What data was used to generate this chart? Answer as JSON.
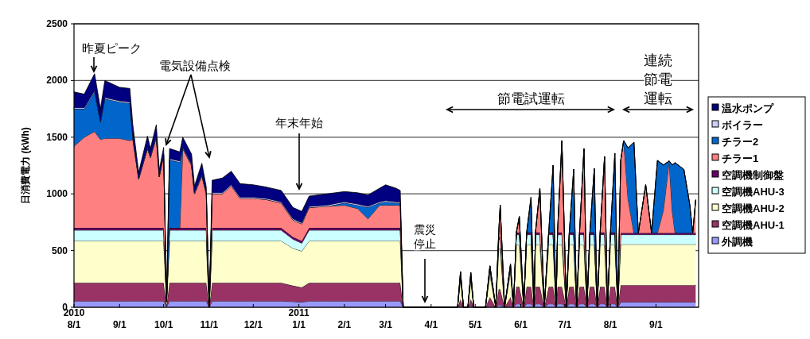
{
  "chart_data": {
    "type": "area",
    "stacked": true,
    "ylabel": "日消費電力 (kWh)",
    "x": [
      "2010-08-01",
      "2010-08-08",
      "2010-08-15",
      "2010-08-19",
      "2010-08-22",
      "2010-09-01",
      "2010-09-08",
      "2010-09-10",
      "2010-09-14",
      "2010-09-20",
      "2010-09-22",
      "2010-09-26",
      "2010-09-28",
      "2010-10-01",
      "2010-10-03",
      "2010-10-05",
      "2010-10-12",
      "2010-10-14",
      "2010-10-20",
      "2010-10-22",
      "2010-10-27",
      "2010-10-30",
      "2010-11-01",
      "2010-11-03",
      "2010-11-10",
      "2010-11-16",
      "2010-11-22",
      "2010-12-01",
      "2010-12-10",
      "2010-12-20",
      "2010-12-28",
      "2011-01-03",
      "2011-01-08",
      "2011-01-20",
      "2011-02-01",
      "2011-02-10",
      "2011-02-17",
      "2011-02-25",
      "2011-03-01",
      "2011-03-08",
      "2011-03-11",
      "2011-03-13",
      "2011-04-19",
      "2011-04-21",
      "2011-04-23",
      "2011-04-26",
      "2011-04-28",
      "2011-04-30",
      "2011-05-08",
      "2011-05-11",
      "2011-05-15",
      "2011-05-17",
      "2011-05-18",
      "2011-05-21",
      "2011-05-25",
      "2011-05-27",
      "2011-05-29",
      "2011-05-31",
      "2011-06-03",
      "2011-06-05",
      "2011-06-08",
      "2011-06-10",
      "2011-06-11",
      "2011-06-14",
      "2011-06-17",
      "2011-06-20",
      "2011-06-23",
      "2011-06-25",
      "2011-06-26",
      "2011-06-29",
      "2011-07-02",
      "2011-07-04",
      "2011-07-07",
      "2011-07-09",
      "2011-07-11",
      "2011-07-14",
      "2011-07-16",
      "2011-07-18",
      "2011-07-21",
      "2011-07-23",
      "2011-07-25",
      "2011-07-28",
      "2011-07-30",
      "2011-08-01",
      "2011-08-04",
      "2011-08-06",
      "2011-08-08",
      "2011-08-10",
      "2011-08-13",
      "2011-08-17",
      "2011-08-20",
      "2011-08-25",
      "2011-08-29",
      "2011-09-02",
      "2011-09-06",
      "2011-09-10",
      "2011-09-12",
      "2011-09-14",
      "2011-09-20",
      "2011-09-24",
      "2011-09-26",
      "2011-09-28"
    ],
    "series": [
      {
        "name": "外調機",
        "color": "#9999ff",
        "values": [
          55,
          55,
          55,
          55,
          55,
          55,
          55,
          55,
          55,
          55,
          55,
          55,
          55,
          55,
          5,
          55,
          55,
          55,
          55,
          55,
          55,
          55,
          0,
          55,
          55,
          55,
          55,
          55,
          55,
          55,
          50,
          45,
          55,
          55,
          55,
          55,
          55,
          55,
          55,
          55,
          55,
          0,
          0,
          10,
          0,
          0,
          10,
          0,
          0,
          10,
          0,
          20,
          20,
          0,
          10,
          0,
          30,
          30,
          0,
          30,
          30,
          0,
          30,
          30,
          0,
          30,
          30,
          0,
          30,
          30,
          0,
          30,
          30,
          0,
          30,
          30,
          0,
          30,
          30,
          0,
          30,
          30,
          0,
          30,
          30,
          0,
          45,
          45,
          45,
          45,
          45,
          45,
          45,
          45,
          45,
          45,
          45,
          45,
          45,
          45,
          45,
          45
        ]
      },
      {
        "name": "空調機AHU-1",
        "color": "#993366",
        "values": [
          160,
          160,
          160,
          160,
          160,
          160,
          160,
          160,
          160,
          160,
          160,
          160,
          160,
          160,
          10,
          160,
          160,
          160,
          160,
          160,
          160,
          160,
          0,
          160,
          160,
          160,
          160,
          160,
          160,
          160,
          140,
          130,
          160,
          160,
          160,
          160,
          160,
          160,
          160,
          160,
          160,
          0,
          0,
          60,
          0,
          0,
          60,
          0,
          0,
          80,
          0,
          140,
          140,
          0,
          80,
          0,
          150,
          150,
          0,
          150,
          150,
          0,
          150,
          150,
          0,
          150,
          150,
          0,
          150,
          150,
          0,
          150,
          150,
          0,
          150,
          150,
          0,
          150,
          150,
          0,
          150,
          150,
          0,
          150,
          150,
          0,
          150,
          150,
          150,
          150,
          150,
          150,
          150,
          150,
          150,
          150,
          150,
          150,
          150,
          150,
          150,
          150
        ]
      },
      {
        "name": "空調機AHU-2",
        "color": "#ffffcc",
        "values": [
          370,
          370,
          370,
          370,
          370,
          370,
          370,
          370,
          370,
          370,
          370,
          370,
          370,
          370,
          30,
          370,
          370,
          370,
          370,
          370,
          370,
          370,
          0,
          370,
          370,
          370,
          370,
          370,
          370,
          370,
          330,
          320,
          370,
          370,
          370,
          370,
          370,
          370,
          370,
          370,
          370,
          0,
          0,
          180,
          0,
          0,
          170,
          0,
          0,
          200,
          0,
          360,
          360,
          0,
          220,
          0,
          370,
          370,
          0,
          370,
          370,
          0,
          370,
          370,
          0,
          370,
          370,
          0,
          370,
          370,
          0,
          370,
          370,
          0,
          370,
          370,
          0,
          370,
          370,
          0,
          370,
          370,
          0,
          370,
          370,
          0,
          360,
          360,
          360,
          360,
          360,
          360,
          360,
          360,
          360,
          360,
          360,
          360,
          360,
          360,
          360,
          360
        ]
      },
      {
        "name": "空調機AHU-3",
        "color": "#ccffff",
        "values": [
          95,
          95,
          95,
          95,
          95,
          95,
          95,
          95,
          95,
          95,
          95,
          95,
          95,
          95,
          5,
          95,
          95,
          95,
          95,
          95,
          95,
          95,
          0,
          95,
          95,
          95,
          95,
          95,
          95,
          95,
          80,
          70,
          95,
          95,
          95,
          95,
          95,
          95,
          95,
          95,
          95,
          0,
          0,
          30,
          0,
          0,
          30,
          0,
          0,
          40,
          0,
          80,
          80,
          0,
          40,
          0,
          90,
          90,
          0,
          90,
          90,
          0,
          90,
          90,
          0,
          90,
          90,
          0,
          90,
          90,
          0,
          90,
          90,
          0,
          90,
          90,
          0,
          90,
          90,
          0,
          90,
          90,
          0,
          90,
          90,
          0,
          85,
          85,
          85,
          85,
          85,
          85,
          85,
          85,
          85,
          85,
          85,
          85,
          85,
          85,
          85,
          85
        ]
      },
      {
        "name": "空調機制御盤",
        "color": "#660066",
        "values": [
          20,
          20,
          20,
          20,
          20,
          20,
          20,
          20,
          20,
          20,
          20,
          20,
          20,
          20,
          0,
          20,
          20,
          20,
          20,
          20,
          20,
          20,
          0,
          20,
          20,
          20,
          20,
          20,
          20,
          20,
          20,
          20,
          20,
          20,
          20,
          20,
          20,
          20,
          20,
          20,
          20,
          0,
          0,
          10,
          0,
          0,
          10,
          0,
          0,
          10,
          0,
          20,
          20,
          0,
          10,
          0,
          20,
          20,
          0,
          20,
          20,
          0,
          20,
          20,
          0,
          20,
          20,
          0,
          20,
          20,
          0,
          20,
          20,
          0,
          20,
          20,
          0,
          20,
          20,
          0,
          20,
          20,
          0,
          20,
          20,
          0,
          15,
          15,
          15,
          15,
          15,
          15,
          15,
          15,
          15,
          15,
          15,
          15,
          15,
          15,
          15,
          15
        ]
      },
      {
        "name": "チラー1",
        "color": "#ff8080",
        "values": [
          720,
          800,
          850,
          780,
          790,
          790,
          770,
          780,
          430,
          700,
          620,
          800,
          450,
          640,
          0,
          0,
          0,
          700,
          550,
          300,
          460,
          300,
          0,
          300,
          300,
          370,
          260,
          260,
          250,
          220,
          150,
          150,
          180,
          190,
          200,
          170,
          80,
          200,
          200,
          200,
          200,
          0,
          0,
          25,
          0,
          0,
          25,
          0,
          0,
          25,
          0,
          40,
          280,
          0,
          20,
          0,
          0,
          140,
          0,
          0,
          0,
          0,
          0,
          390,
          0,
          0,
          0,
          0,
          0,
          810,
          0,
          0,
          0,
          0,
          0,
          740,
          0,
          0,
          0,
          0,
          0,
          670,
          0,
          0,
          0,
          0,
          640,
          815,
          300,
          0,
          0,
          425,
          0,
          0,
          200,
          635,
          200,
          0,
          0,
          0,
          0,
          290
        ]
      },
      {
        "name": "チラー2",
        "color": "#0066cc",
        "values": [
          330,
          250,
          350,
          150,
          350,
          320,
          330,
          20,
          0,
          0,
          0,
          0,
          0,
          0,
          0,
          600,
          580,
          0,
          0,
          0,
          0,
          0,
          0,
          0,
          0,
          0,
          0,
          0,
          0,
          0,
          0,
          0,
          0,
          0,
          20,
          30,
          100,
          20,
          30,
          20,
          20,
          0,
          0,
          0,
          0,
          0,
          0,
          0,
          0,
          0,
          0,
          0,
          0,
          0,
          0,
          0,
          0,
          0,
          0,
          0,
          313,
          0,
          0,
          0,
          0,
          0,
          593,
          0,
          0,
          0,
          0,
          0,
          558,
          0,
          0,
          0,
          0,
          0,
          565,
          0,
          0,
          0,
          0,
          0,
          698,
          0,
          0,
          0,
          450,
          800,
          0,
          0,
          0,
          640,
          400,
          0,
          400,
          620,
          560,
          250,
          0,
          0
        ]
      },
      {
        "name": "ボイラー",
        "color": "#ccccff",
        "values": [
          10,
          10,
          10,
          10,
          10,
          10,
          10,
          10,
          10,
          10,
          10,
          10,
          10,
          10,
          0,
          10,
          10,
          10,
          10,
          10,
          10,
          10,
          0,
          10,
          10,
          10,
          10,
          10,
          10,
          10,
          10,
          10,
          10,
          10,
          10,
          10,
          10,
          10,
          10,
          10,
          10,
          0,
          0,
          0,
          0,
          0,
          0,
          0,
          0,
          0,
          0,
          0,
          0,
          0,
          0,
          0,
          0,
          0,
          0,
          0,
          0,
          0,
          0,
          0,
          0,
          0,
          0,
          0,
          0,
          0,
          0,
          0,
          0,
          0,
          0,
          0,
          0,
          0,
          0,
          0,
          0,
          0,
          0,
          0,
          0,
          0,
          0,
          0,
          0,
          0,
          0,
          0,
          0,
          0,
          0,
          0,
          0,
          0,
          0,
          0,
          0,
          0
        ]
      },
      {
        "name": "温水ポンプ",
        "color": "#000080",
        "values": [
          140,
          120,
          150,
          110,
          150,
          120,
          120,
          100,
          50,
          100,
          70,
          100,
          50,
          60,
          0,
          90,
          80,
          90,
          90,
          60,
          100,
          50,
          0,
          110,
          130,
          120,
          120,
          110,
          100,
          100,
          100,
          100,
          90,
          100,
          90,
          100,
          100,
          120,
          140,
          120,
          100,
          0,
          0,
          0,
          0,
          0,
          0,
          0,
          0,
          0,
          0,
          0,
          0,
          0,
          0,
          0,
          0,
          0,
          0,
          0,
          0,
          0,
          0,
          0,
          0,
          0,
          0,
          0,
          0,
          0,
          0,
          0,
          0,
          0,
          0,
          0,
          0,
          0,
          0,
          0,
          0,
          0,
          0,
          0,
          0,
          0,
          0,
          0,
          0,
          0,
          0,
          0,
          0,
          0,
          0,
          0,
          0,
          0,
          0,
          0,
          0,
          0
        ]
      }
    ],
    "xlim": [
      "2010-08-01",
      "2011-09-30"
    ],
    "xticks": [
      {
        "value": "2010-08-01",
        "label": "2010\n8/1"
      },
      {
        "value": "2010-09-01",
        "label": "9/1"
      },
      {
        "value": "2010-10-01",
        "label": "10/1"
      },
      {
        "value": "2010-11-01",
        "label": "11/1"
      },
      {
        "value": "2010-12-01",
        "label": "12/1"
      },
      {
        "value": "2011-01-01",
        "label": "2011\n1/1"
      },
      {
        "value": "2011-02-01",
        "label": "2/1"
      },
      {
        "value": "2011-03-01",
        "label": "3/1"
      },
      {
        "value": "2011-04-01",
        "label": "4/1"
      },
      {
        "value": "2011-05-01",
        "label": "5/1"
      },
      {
        "value": "2011-06-01",
        "label": "6/1"
      },
      {
        "value": "2011-07-01",
        "label": "7/1"
      },
      {
        "value": "2011-08-01",
        "label": "8/1"
      },
      {
        "value": "2011-09-01",
        "label": "9/1"
      }
    ],
    "ylim": [
      0,
      2500
    ],
    "yticks": [
      0,
      500,
      1000,
      1500,
      2000,
      2500
    ],
    "grid": "y",
    "legend": "right",
    "annotations": [
      "昨夏ピーク",
      "電気設備点検",
      "年末年始",
      "震災停止",
      "節電試運転",
      "連続節電運転"
    ]
  }
}
